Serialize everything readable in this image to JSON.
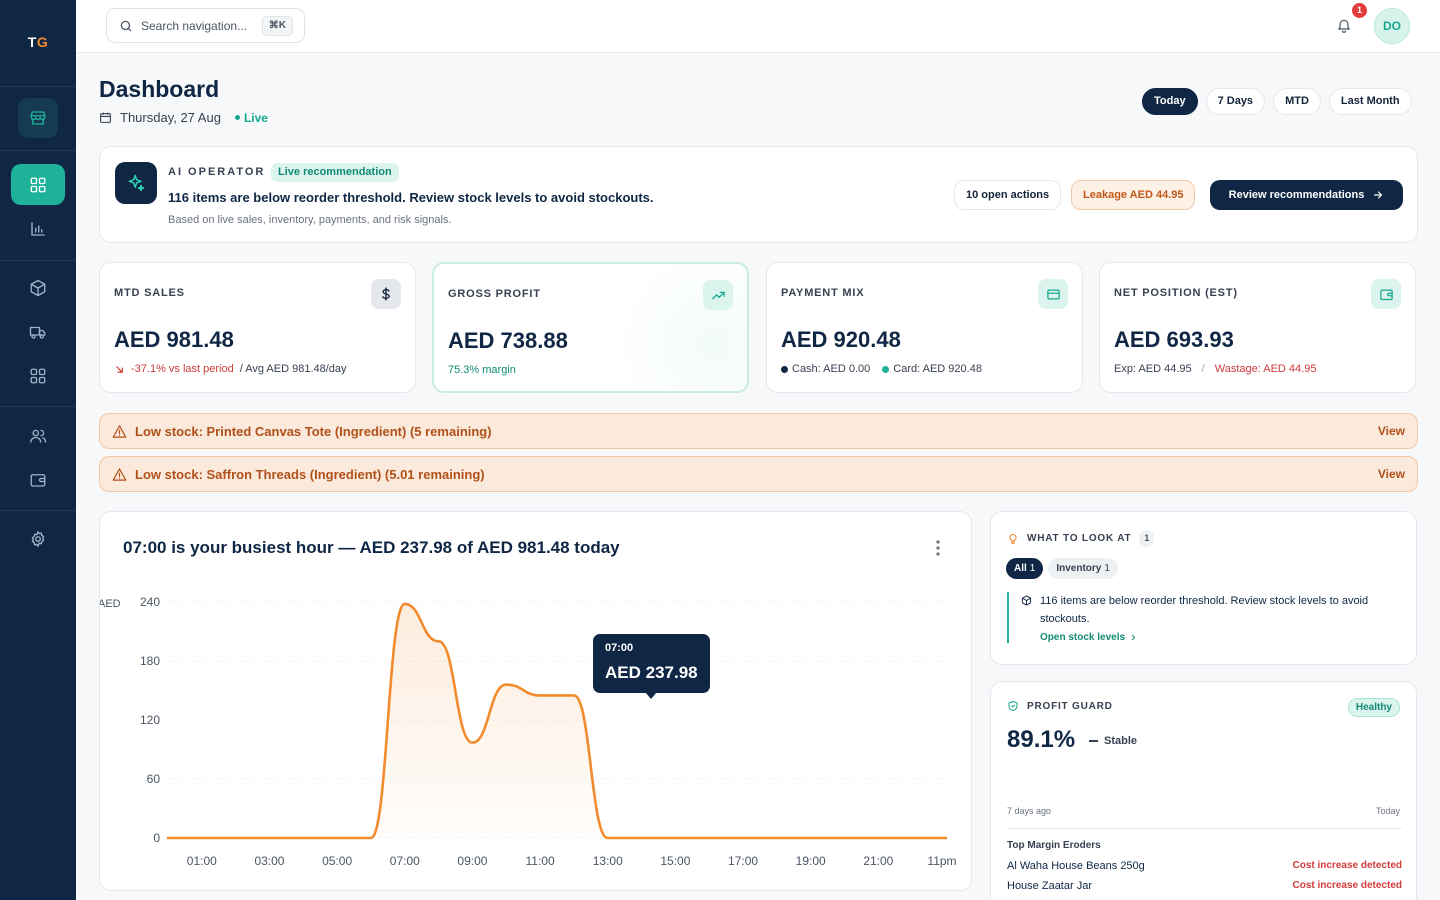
{
  "sidebar": {
    "logo_t": "T",
    "logo_g": "G",
    "items": [
      {
        "name": "dashboard",
        "icon": "grid-icon"
      },
      {
        "name": "reports",
        "icon": "bar-chart-icon"
      },
      {
        "name": "inventory",
        "icon": "box-icon"
      },
      {
        "name": "deliveries",
        "icon": "truck-icon"
      },
      {
        "name": "catalog",
        "icon": "apps-icon"
      },
      {
        "name": "customers",
        "icon": "users-icon"
      },
      {
        "name": "wallet",
        "icon": "wallet-icon"
      },
      {
        "name": "settings",
        "icon": "gear-icon"
      }
    ]
  },
  "topbar": {
    "search_placeholder": "Search navigation...",
    "shortcut": "⌘K",
    "notification_count": "1",
    "avatar_initials": "DO"
  },
  "header": {
    "title": "Dashboard",
    "date": "Thursday, 27 Aug",
    "live": "Live",
    "periods": [
      "Today",
      "7 Days",
      "MTD",
      "Last Month"
    ],
    "active_period": "Today"
  },
  "ai_operator": {
    "label": "AI OPERATOR",
    "badge": "Live recommendation",
    "message": "116 items are below reorder threshold. Review stock levels to avoid stockouts.",
    "sub": "Based on live sales, inventory, payments, and risk signals.",
    "open_actions": "10 open actions",
    "leakage": "Leakage AED 44.95",
    "review_button": "Review recommendations"
  },
  "kpis": {
    "sales": {
      "title": "MTD SALES",
      "value": "AED 981.48",
      "change": "-37.1% vs last period",
      "avg": "/ Avg AED 981.48/day"
    },
    "profit": {
      "title": "GROSS PROFIT",
      "value": "AED 738.88",
      "margin": "75.3% margin"
    },
    "payment": {
      "title": "PAYMENT MIX",
      "value": "AED 920.48",
      "cash": "Cash: AED 0.00",
      "card": "Card: AED 920.48"
    },
    "net": {
      "title": "NET POSITION (EST)",
      "value": "AED 693.93",
      "exp": "Exp: AED 44.95",
      "sep": "/",
      "wastage": "Wastage: AED 44.95"
    }
  },
  "alerts": [
    {
      "text": "Low stock: Printed Canvas Tote (Ingredient) (5 remaining)",
      "action": "View"
    },
    {
      "text": "Low stock: Saffron Threads (Ingredient) (5.01 remaining)",
      "action": "View"
    }
  ],
  "chart_data": {
    "type": "area",
    "title": "07:00 is your busiest hour — AED 237.98 of AED 981.48 today",
    "ylabel": "AED",
    "xlabel": "",
    "x_ticks": [
      "01:00",
      "03:00",
      "05:00",
      "07:00",
      "09:00",
      "11:00",
      "13:00",
      "15:00",
      "17:00",
      "19:00",
      "21:00",
      "11pm"
    ],
    "y_ticks": [
      0,
      60,
      120,
      180,
      240
    ],
    "ylim": [
      0,
      240
    ],
    "hours": [
      0,
      1,
      2,
      3,
      4,
      5,
      6,
      7,
      8,
      9,
      10,
      11,
      12,
      13,
      14,
      15,
      16,
      17,
      18,
      19,
      20,
      21,
      22,
      23
    ],
    "values": [
      0,
      0,
      0,
      0,
      0,
      0,
      0,
      237.98,
      200,
      97,
      156,
      145,
      145,
      0,
      0,
      0,
      0,
      0,
      0,
      0,
      0,
      0,
      0,
      0
    ],
    "tooltip": {
      "time": "07:00",
      "value": "AED 237.98"
    },
    "colors": {
      "line": "#f28a2e",
      "fill": "#fde9d6"
    },
    "grid": true
  },
  "look": {
    "title": "WHAT TO LOOK AT",
    "count": "1",
    "filters": [
      {
        "label": "All",
        "count": "1",
        "active": true
      },
      {
        "label": "Inventory",
        "count": "1",
        "active": false
      }
    ],
    "item_text": "116 items are below reorder threshold. Review stock levels to avoid stockouts.",
    "item_link": "Open stock levels"
  },
  "guard": {
    "title": "PROFIT GUARD",
    "status": "Healthy",
    "value": "89.1%",
    "trend": "Stable",
    "range_start": "7 days ago",
    "range_end": "Today",
    "section": "Top Margin Eroders",
    "eroders": [
      {
        "name": "Al Waha House Beans 250g",
        "status": "Cost increase detected"
      },
      {
        "name": "House Zaatar Jar",
        "status": "Cost increase detected"
      }
    ]
  },
  "colors": {
    "sidebar": "#0f2744",
    "accent": "#1fb29a",
    "orange": "#f28a2e",
    "danger": "#d23b3b"
  }
}
